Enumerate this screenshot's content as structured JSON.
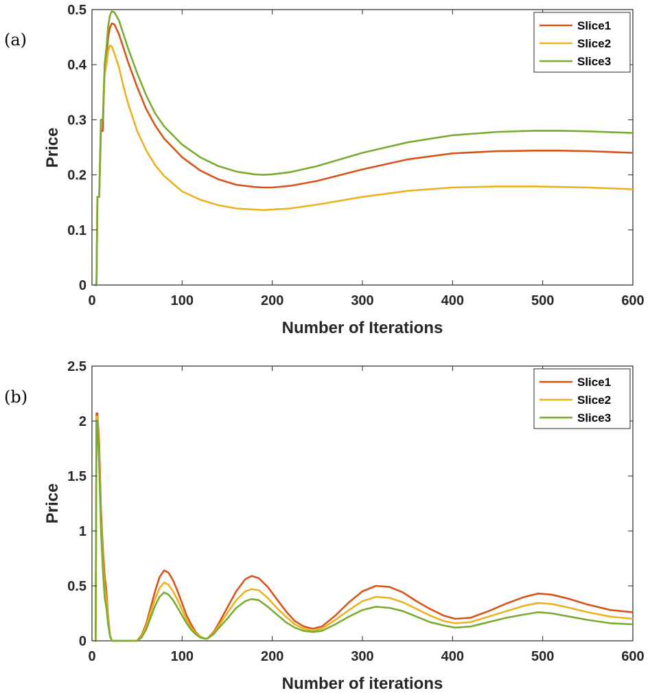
{
  "chart_data": [
    {
      "type": "line",
      "panel_label": "(a)",
      "xlabel": "Number of Iterations",
      "ylabel": "Price",
      "xlim": [
        0,
        600
      ],
      "ylim": [
        0,
        0.5
      ],
      "xticks": [
        0,
        100,
        200,
        300,
        400,
        500,
        600
      ],
      "yticks": [
        0,
        0.1,
        0.2,
        0.3,
        0.4,
        0.5
      ],
      "xtick_labels": [
        "0",
        "100",
        "200",
        "300",
        "400",
        "500",
        "600"
      ],
      "ytick_labels": [
        "0",
        "0.1",
        "0.2",
        "0.3",
        "0.4",
        "0.5"
      ],
      "grid": false,
      "legend": "top-right",
      "series": [
        {
          "name": "Slice1",
          "color": "#D95319",
          "x": [
            3,
            5,
            6,
            8,
            10,
            12,
            14,
            16,
            18,
            20,
            22,
            25,
            30,
            35,
            40,
            50,
            60,
            70,
            80,
            100,
            120,
            140,
            160,
            180,
            190,
            200,
            220,
            250,
            300,
            350,
            400,
            450,
            490,
            520,
            550,
            600
          ],
          "values": [
            0,
            0,
            0.16,
            0.16,
            0.28,
            0.28,
            0.39,
            0.41,
            0.45,
            0.468,
            0.475,
            0.473,
            0.455,
            0.43,
            0.405,
            0.36,
            0.32,
            0.29,
            0.266,
            0.232,
            0.208,
            0.192,
            0.182,
            0.178,
            0.177,
            0.177,
            0.18,
            0.189,
            0.21,
            0.228,
            0.239,
            0.243,
            0.244,
            0.244,
            0.243,
            0.24
          ]
        },
        {
          "name": "Slice2",
          "color": "#EDB120",
          "x": [
            3,
            5,
            6,
            8,
            10,
            12,
            14,
            16,
            18,
            20,
            22,
            25,
            30,
            35,
            40,
            50,
            60,
            70,
            80,
            100,
            120,
            140,
            160,
            180,
            190,
            200,
            220,
            250,
            300,
            350,
            400,
            450,
            490,
            520,
            550,
            600
          ],
          "values": [
            0,
            0,
            0.16,
            0.16,
            0.3,
            0.3,
            0.38,
            0.4,
            0.425,
            0.435,
            0.433,
            0.42,
            0.395,
            0.36,
            0.33,
            0.28,
            0.245,
            0.218,
            0.198,
            0.17,
            0.155,
            0.145,
            0.139,
            0.137,
            0.136,
            0.137,
            0.139,
            0.146,
            0.16,
            0.171,
            0.177,
            0.179,
            0.179,
            0.178,
            0.177,
            0.174
          ]
        },
        {
          "name": "Slice3",
          "color": "#77AC30",
          "x": [
            3,
            5,
            6,
            8,
            10,
            12,
            14,
            16,
            18,
            20,
            22,
            25,
            30,
            35,
            40,
            50,
            60,
            70,
            80,
            100,
            120,
            140,
            160,
            180,
            190,
            200,
            220,
            250,
            300,
            350,
            400,
            450,
            490,
            520,
            550,
            600
          ],
          "values": [
            0,
            0,
            0.16,
            0.16,
            0.3,
            0.3,
            0.4,
            0.43,
            0.47,
            0.49,
            0.497,
            0.495,
            0.48,
            0.455,
            0.43,
            0.385,
            0.345,
            0.312,
            0.288,
            0.255,
            0.232,
            0.216,
            0.206,
            0.201,
            0.2,
            0.201,
            0.205,
            0.216,
            0.24,
            0.259,
            0.272,
            0.278,
            0.28,
            0.28,
            0.279,
            0.276
          ]
        }
      ]
    },
    {
      "type": "line",
      "panel_label": "(b)",
      "xlabel": "Number of iterations",
      "ylabel": "Price",
      "xlim": [
        0,
        600
      ],
      "ylim": [
        0,
        2.5
      ],
      "xticks": [
        0,
        100,
        200,
        300,
        400,
        500,
        600
      ],
      "yticks": [
        0,
        0.5,
        1,
        1.5,
        2,
        2.5
      ],
      "xtick_labels": [
        "0",
        "100",
        "200",
        "300",
        "400",
        "500",
        "600"
      ],
      "ytick_labels": [
        "0",
        "0.5",
        "1",
        "1.5",
        "2",
        "2.5"
      ],
      "grid": false,
      "legend": "top-right",
      "series": [
        {
          "name": "Slice1",
          "color": "#D95319",
          "x": [
            3,
            4,
            5,
            6,
            8,
            10,
            12,
            14,
            16,
            18,
            20,
            22,
            30,
            40,
            50,
            55,
            60,
            65,
            70,
            75,
            80,
            85,
            90,
            95,
            100,
            105,
            110,
            115,
            120,
            125,
            128,
            135,
            140,
            150,
            160,
            170,
            177,
            185,
            195,
            205,
            215,
            225,
            235,
            245,
            255,
            270,
            285,
            300,
            315,
            330,
            345,
            360,
            375,
            390,
            403,
            420,
            440,
            460,
            480,
            495,
            510,
            530,
            550,
            575,
            600
          ],
          "values": [
            0,
            0,
            2.07,
            2.07,
            1.8,
            1.2,
            0.85,
            0.6,
            0.45,
            0.22,
            0.05,
            0,
            0,
            0,
            0,
            0.05,
            0.15,
            0.3,
            0.45,
            0.58,
            0.64,
            0.62,
            0.55,
            0.45,
            0.34,
            0.23,
            0.15,
            0.08,
            0.04,
            0.02,
            0.02,
            0.08,
            0.15,
            0.3,
            0.45,
            0.56,
            0.59,
            0.57,
            0.49,
            0.38,
            0.27,
            0.18,
            0.13,
            0.11,
            0.13,
            0.23,
            0.35,
            0.45,
            0.5,
            0.49,
            0.44,
            0.36,
            0.29,
            0.23,
            0.2,
            0.21,
            0.27,
            0.34,
            0.4,
            0.43,
            0.42,
            0.38,
            0.33,
            0.28,
            0.26
          ]
        },
        {
          "name": "Slice2",
          "color": "#EDB120",
          "x": [
            3,
            4,
            5,
            6,
            8,
            10,
            12,
            14,
            16,
            18,
            20,
            22,
            30,
            40,
            50,
            55,
            60,
            65,
            70,
            75,
            80,
            85,
            90,
            95,
            100,
            105,
            110,
            115,
            120,
            125,
            128,
            135,
            140,
            150,
            160,
            170,
            177,
            185,
            195,
            205,
            215,
            225,
            235,
            245,
            255,
            270,
            285,
            300,
            315,
            330,
            345,
            360,
            375,
            390,
            403,
            420,
            440,
            460,
            480,
            495,
            510,
            530,
            550,
            575,
            600
          ],
          "values": [
            0,
            0,
            2.04,
            2.04,
            1.7,
            1.1,
            0.75,
            0.5,
            0.38,
            0.2,
            0.05,
            0,
            0,
            0,
            0,
            0.04,
            0.13,
            0.26,
            0.38,
            0.48,
            0.53,
            0.51,
            0.45,
            0.37,
            0.28,
            0.19,
            0.12,
            0.07,
            0.04,
            0.02,
            0.02,
            0.07,
            0.13,
            0.25,
            0.37,
            0.45,
            0.47,
            0.46,
            0.39,
            0.3,
            0.22,
            0.15,
            0.11,
            0.09,
            0.11,
            0.19,
            0.28,
            0.36,
            0.4,
            0.39,
            0.35,
            0.29,
            0.23,
            0.18,
            0.16,
            0.17,
            0.22,
            0.27,
            0.32,
            0.345,
            0.335,
            0.3,
            0.26,
            0.22,
            0.2
          ]
        },
        {
          "name": "Slice3",
          "color": "#77AC30",
          "x": [
            3,
            4,
            5,
            6,
            8,
            10,
            12,
            14,
            16,
            18,
            20,
            22,
            30,
            40,
            50,
            55,
            60,
            65,
            70,
            75,
            80,
            85,
            90,
            95,
            100,
            105,
            110,
            115,
            120,
            125,
            128,
            135,
            140,
            150,
            160,
            170,
            177,
            185,
            195,
            205,
            215,
            225,
            235,
            245,
            255,
            270,
            285,
            300,
            315,
            330,
            345,
            360,
            375,
            390,
            403,
            420,
            440,
            460,
            480,
            495,
            510,
            530,
            550,
            575,
            600
          ],
          "values": [
            0,
            0,
            2.0,
            2.0,
            1.6,
            1.0,
            0.65,
            0.4,
            0.3,
            0.15,
            0.04,
            0,
            0,
            0,
            0,
            0.03,
            0.1,
            0.21,
            0.32,
            0.4,
            0.44,
            0.42,
            0.37,
            0.3,
            0.23,
            0.16,
            0.1,
            0.06,
            0.03,
            0.02,
            0.02,
            0.06,
            0.11,
            0.2,
            0.3,
            0.36,
            0.38,
            0.37,
            0.31,
            0.24,
            0.17,
            0.12,
            0.09,
            0.08,
            0.09,
            0.15,
            0.22,
            0.28,
            0.31,
            0.3,
            0.27,
            0.22,
            0.17,
            0.14,
            0.12,
            0.13,
            0.17,
            0.21,
            0.24,
            0.26,
            0.25,
            0.22,
            0.19,
            0.16,
            0.15
          ]
        }
      ]
    }
  ]
}
